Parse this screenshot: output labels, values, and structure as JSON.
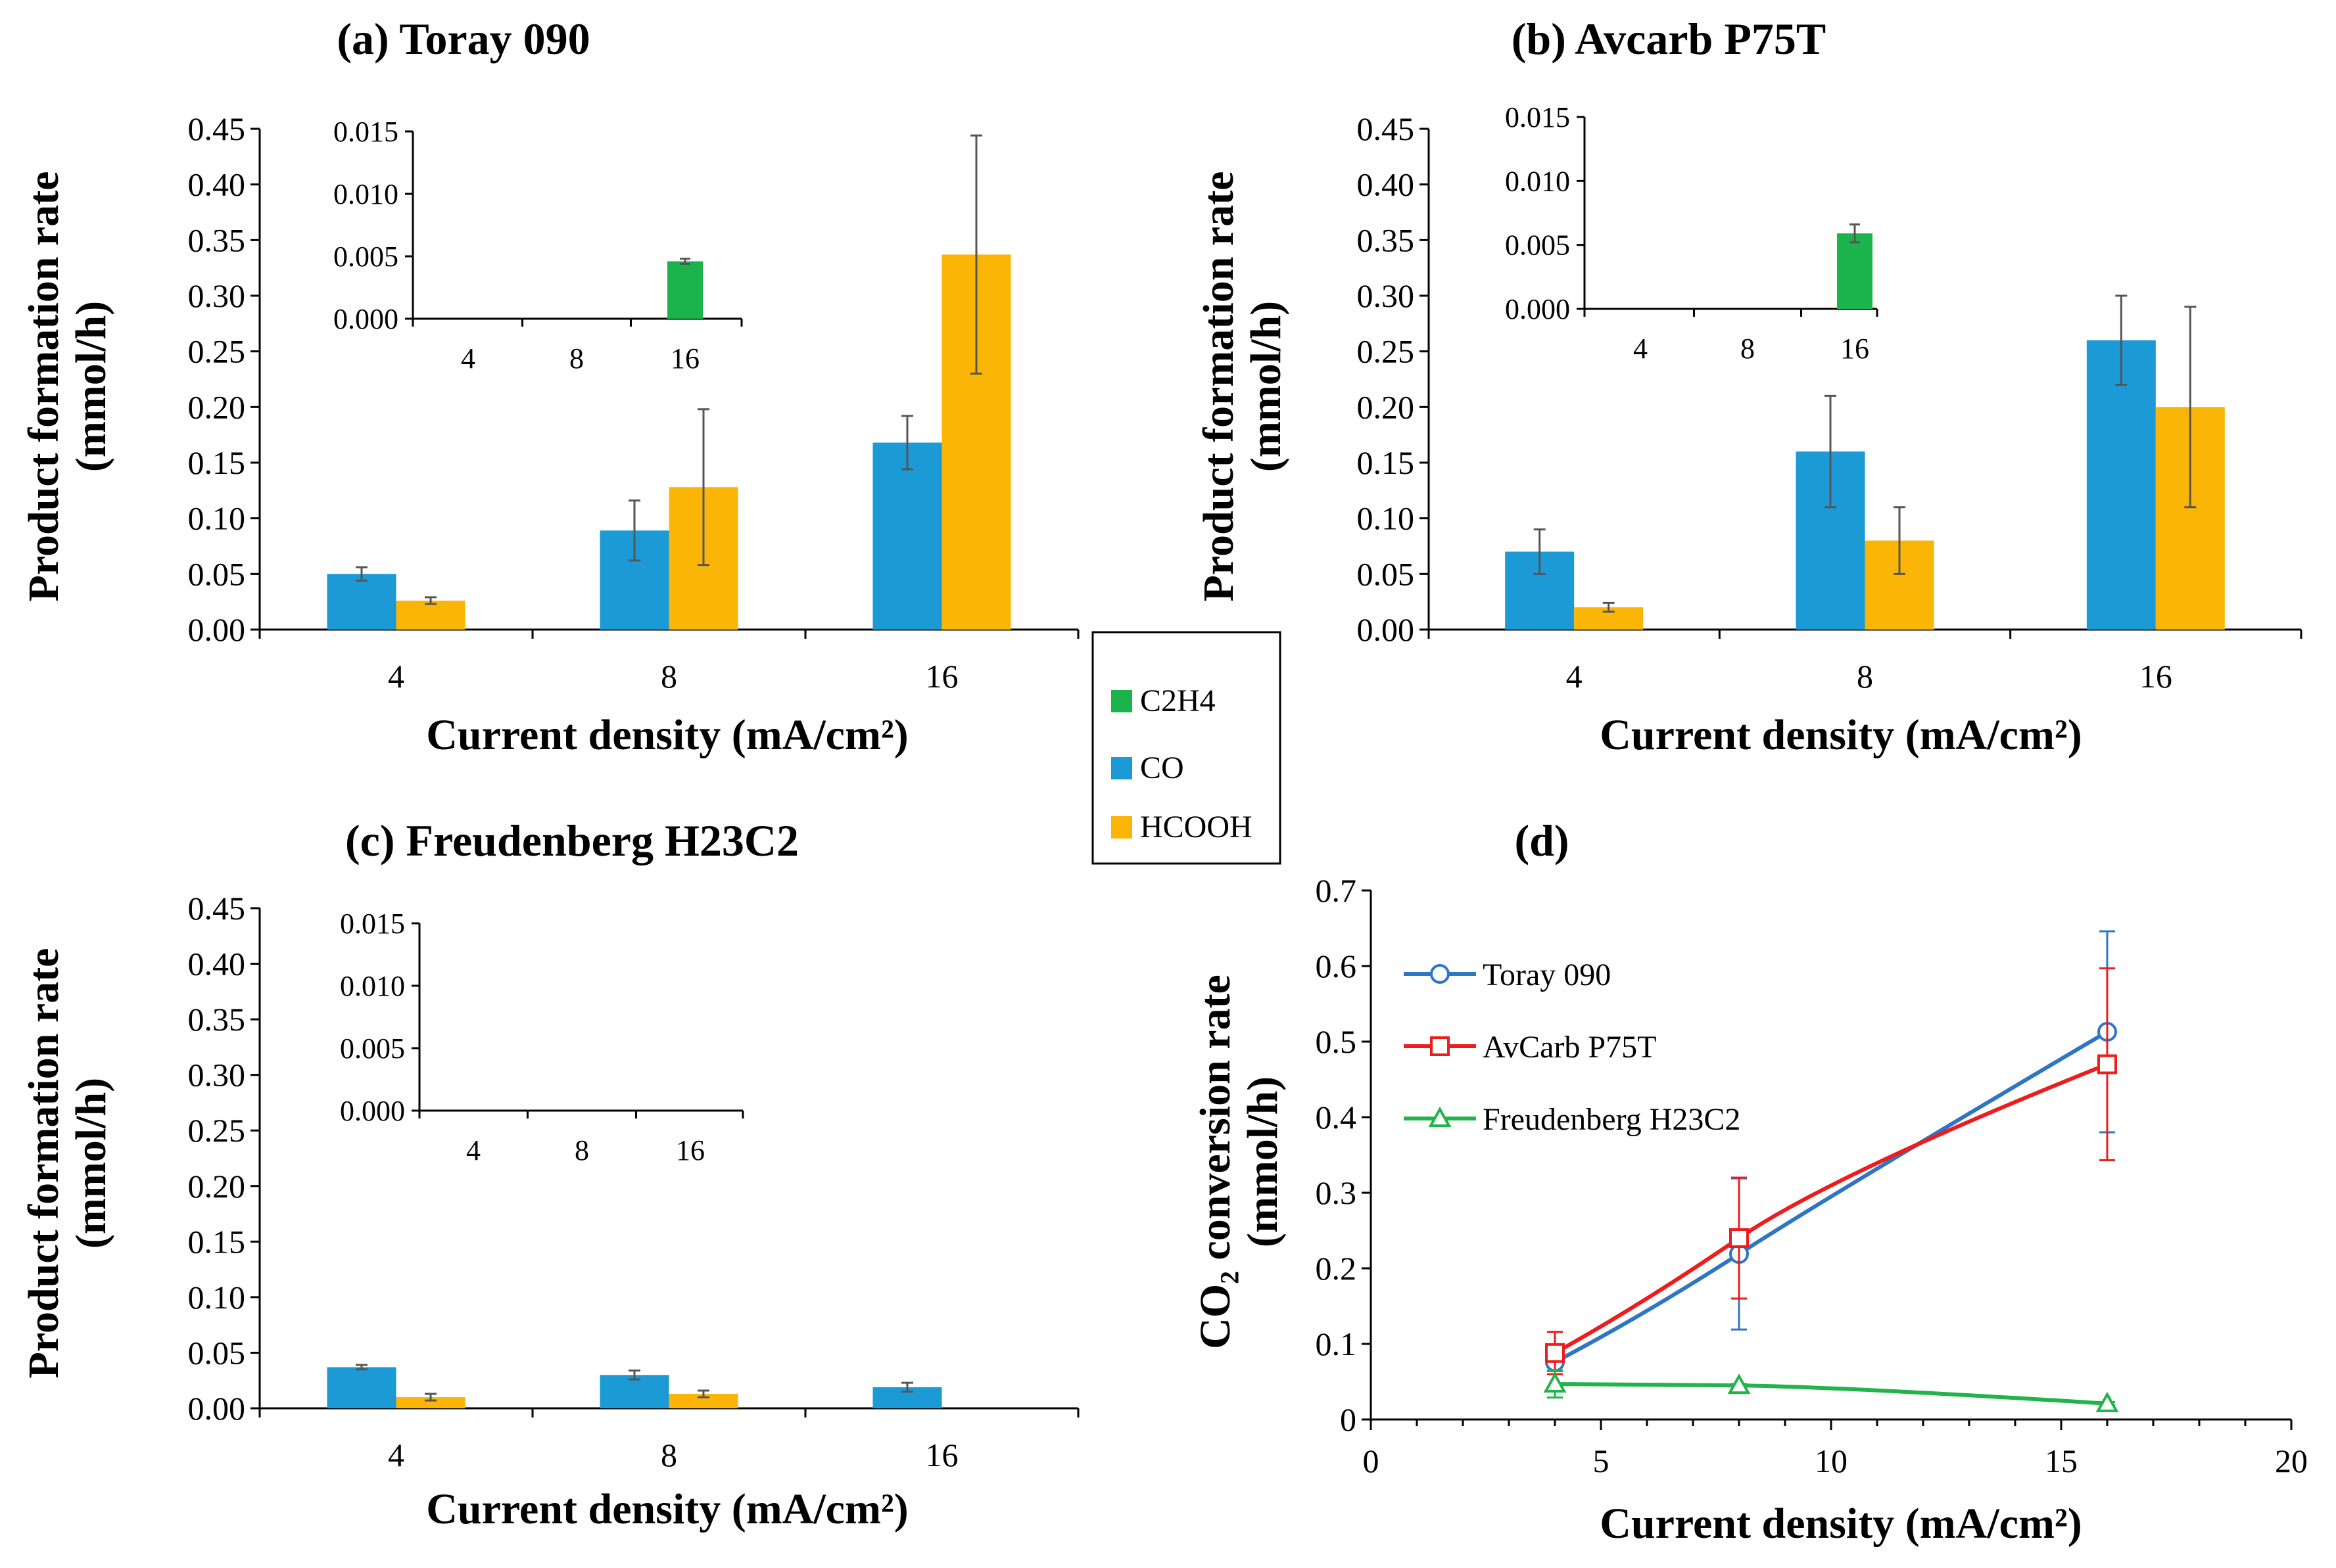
{
  "colors": {
    "C2H4": "#1ab34c",
    "CO": "#1b9ad6",
    "HCOOH": "#fbb507",
    "toray": "#2e75c6",
    "avcarb": "#ee1c1c",
    "freud": "#22b34a",
    "axis": "#000000",
    "err": "#555555"
  },
  "shared_legend": {
    "items": [
      "C2H4",
      "CO",
      "HCOOH"
    ]
  },
  "chart_data": [
    {
      "id": "a",
      "type": "bar",
      "title": "(a) Toray 090",
      "xlabel": "Current density (mA/cm²)",
      "ylabel": [
        "Product formation rate",
        "(mmol/h)"
      ],
      "categories": [
        "4",
        "8",
        "16"
      ],
      "ylim": [
        0,
        0.45
      ],
      "yticks": [
        "0.00",
        "0.05",
        "0.10",
        "0.15",
        "0.20",
        "0.25",
        "0.30",
        "0.35",
        "0.40",
        "0.45"
      ],
      "series": [
        {
          "name": "CO",
          "values": [
            0.05,
            0.089,
            0.168
          ],
          "errors": [
            0.006,
            0.027,
            0.024
          ]
        },
        {
          "name": "HCOOH",
          "values": [
            0.026,
            0.128,
            0.337
          ],
          "errors": [
            0.003,
            0.07,
            0.107
          ]
        }
      ],
      "inset": {
        "type": "bar",
        "categories": [
          "4",
          "8",
          "16"
        ],
        "ylim": [
          0,
          0.015
        ],
        "yticks": [
          "0.000",
          "0.005",
          "0.010",
          "0.015"
        ],
        "series": [
          {
            "name": "C2H4",
            "values": [
              0,
              0,
              0.0046
            ],
            "errors": [
              0,
              0,
              0.0002
            ]
          }
        ]
      }
    },
    {
      "id": "b",
      "type": "bar",
      "title": "(b) Avcarb P75T",
      "xlabel": "Current density (mA/cm²)",
      "ylabel": [
        "Product formation rate",
        "(mmol/h)"
      ],
      "categories": [
        "4",
        "8",
        "16"
      ],
      "ylim": [
        0,
        0.45
      ],
      "yticks": [
        "0.00",
        "0.05",
        "0.10",
        "0.15",
        "0.20",
        "0.25",
        "0.30",
        "0.35",
        "0.40",
        "0.45"
      ],
      "series": [
        {
          "name": "CO",
          "values": [
            0.07,
            0.16,
            0.26
          ],
          "errors": [
            0.02,
            0.05,
            0.04
          ]
        },
        {
          "name": "HCOOH",
          "values": [
            0.02,
            0.08,
            0.2
          ],
          "errors": [
            0.004,
            0.03,
            0.09
          ]
        }
      ],
      "inset": {
        "type": "bar",
        "categories": [
          "4",
          "8",
          "16"
        ],
        "ylim": [
          0,
          0.015
        ],
        "yticks": [
          "0.000",
          "0.005",
          "0.010",
          "0.015"
        ],
        "series": [
          {
            "name": "C2H4",
            "values": [
              0,
              0,
              0.0059
            ],
            "errors": [
              0,
              0,
              0.0007
            ]
          }
        ]
      }
    },
    {
      "id": "c",
      "type": "bar",
      "title": "(c) Freudenberg H23C2",
      "xlabel": "Current density (mA/cm²)",
      "ylabel": [
        "Product formation rate",
        "(mmol/h)"
      ],
      "categories": [
        "4",
        "8",
        "16"
      ],
      "ylim": [
        0,
        0.45
      ],
      "yticks": [
        "0.00",
        "0.05",
        "0.10",
        "0.15",
        "0.20",
        "0.25",
        "0.30",
        "0.35",
        "0.40",
        "0.45"
      ],
      "series": [
        {
          "name": "CO",
          "values": [
            0.037,
            0.03,
            0.019
          ],
          "errors": [
            0.002,
            0.004,
            0.004
          ]
        },
        {
          "name": "HCOOH",
          "values": [
            0.01,
            0.013,
            0
          ],
          "errors": [
            0.003,
            0.003,
            0
          ]
        }
      ],
      "inset": {
        "type": "bar",
        "categories": [
          "4",
          "8",
          "16"
        ],
        "ylim": [
          0,
          0.015
        ],
        "yticks": [
          "0.000",
          "0.005",
          "0.010",
          "0.015"
        ],
        "series": [
          {
            "name": "C2H4",
            "values": [
              0,
              0,
              0
            ],
            "errors": [
              0,
              0,
              0
            ]
          }
        ]
      }
    },
    {
      "id": "d",
      "type": "line",
      "title": "(d)",
      "xlabel": "Current density (mA/cm²)",
      "ylabel": [
        "CO₂ conversion rate",
        "(mmol/h)"
      ],
      "xlim": [
        0,
        20
      ],
      "xticks": [
        "0",
        "5",
        "10",
        "15",
        "20"
      ],
      "ylim": [
        0,
        0.7
      ],
      "yticks": [
        "0",
        "0.1",
        "0.2",
        "0.3",
        "0.4",
        "0.5",
        "0.6",
        "0.7"
      ],
      "legend_position": "top-left",
      "series": [
        {
          "name": "Toray 090",
          "marker": "circle",
          "x": [
            4,
            8,
            16
          ],
          "y": [
            0.076,
            0.219,
            0.513
          ],
          "errors": [
            0.012,
            0.1,
            0.133
          ]
        },
        {
          "name": "AvCarb P75T",
          "marker": "square",
          "x": [
            4,
            8,
            16
          ],
          "y": [
            0.088,
            0.24,
            0.47
          ],
          "errors": [
            0.028,
            0.08,
            0.127
          ]
        },
        {
          "name": "Freudenberg H23C2",
          "marker": "triangle",
          "x": [
            4,
            8,
            16
          ],
          "y": [
            0.047,
            0.045,
            0.021
          ],
          "errors": [
            0.018,
            0.002,
            0.002
          ]
        }
      ]
    }
  ]
}
